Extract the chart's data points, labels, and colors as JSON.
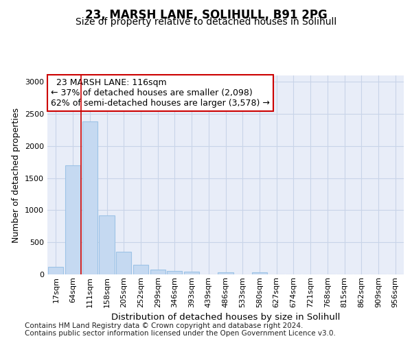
{
  "title1": "23, MARSH LANE, SOLIHULL, B91 2PG",
  "title2": "Size of property relative to detached houses in Solihull",
  "xlabel": "Distribution of detached houses by size in Solihull",
  "ylabel": "Number of detached properties",
  "footer1": "Contains HM Land Registry data © Crown copyright and database right 2024.",
  "footer2": "Contains public sector information licensed under the Open Government Licence v3.0.",
  "categories": [
    "17sqm",
    "64sqm",
    "111sqm",
    "158sqm",
    "205sqm",
    "252sqm",
    "299sqm",
    "346sqm",
    "393sqm",
    "439sqm",
    "486sqm",
    "533sqm",
    "580sqm",
    "627sqm",
    "674sqm",
    "721sqm",
    "768sqm",
    "815sqm",
    "862sqm",
    "909sqm",
    "956sqm"
  ],
  "values": [
    120,
    1700,
    2380,
    920,
    350,
    155,
    80,
    55,
    40,
    0,
    30,
    0,
    30,
    0,
    0,
    0,
    0,
    0,
    0,
    0,
    0
  ],
  "bar_color": "#c5d9f1",
  "bar_edge_color": "#9dc3e6",
  "vline_bar_index": 2,
  "vline_color": "#cc0000",
  "annotation_text": "  23 MARSH LANE: 116sqm\n← 37% of detached houses are smaller (2,098)\n62% of semi-detached houses are larger (3,578) →",
  "ylim": [
    0,
    3100
  ],
  "yticks": [
    0,
    500,
    1000,
    1500,
    2000,
    2500,
    3000
  ],
  "grid_color": "#c8d4e8",
  "bg_color": "#e8edf8",
  "title1_fontsize": 12,
  "title2_fontsize": 10,
  "xlabel_fontsize": 9.5,
  "ylabel_fontsize": 9,
  "tick_fontsize": 8,
  "footer_fontsize": 7.5,
  "ann_fontsize": 9
}
